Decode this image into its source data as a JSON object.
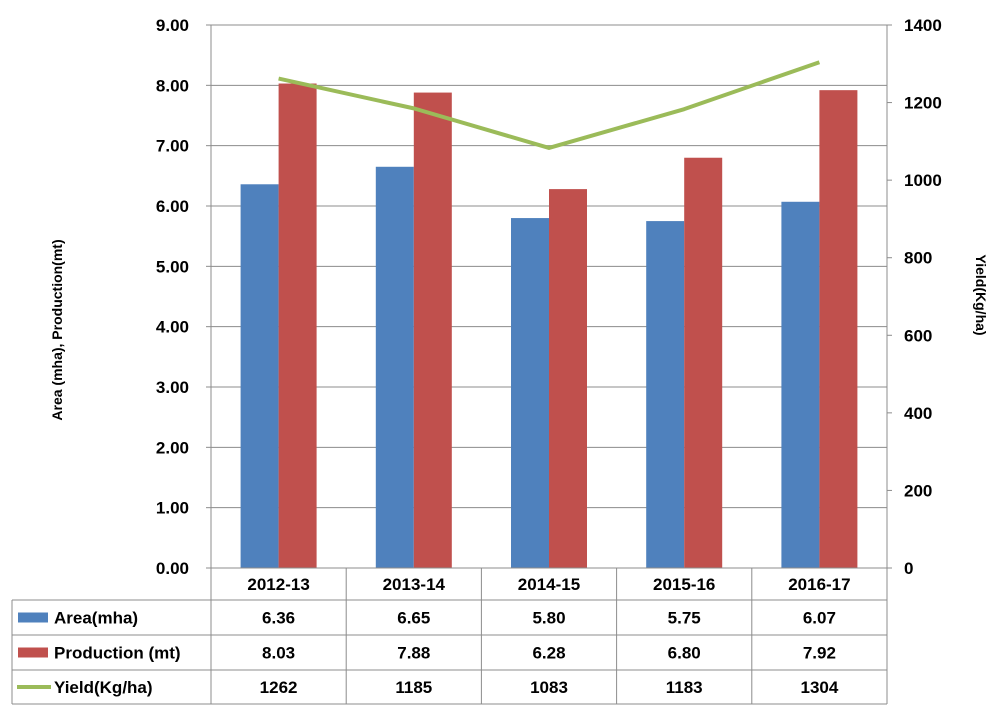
{
  "chart_data": {
    "type": "bar",
    "categories": [
      "2012-13",
      "2013-14",
      "2014-15",
      "2015-16",
      "2016-17"
    ],
    "series": [
      {
        "name": "Area(mha)",
        "kind": "bar",
        "axis": "left",
        "color": "#4F81BD",
        "values": [
          6.36,
          6.65,
          5.8,
          5.75,
          6.07
        ],
        "labels": [
          "6.36",
          "6.65",
          "5.80",
          "5.75",
          "6.07"
        ]
      },
      {
        "name": "Production (mt)",
        "kind": "bar",
        "axis": "left",
        "color": "#C0504D",
        "values": [
          8.03,
          7.88,
          6.28,
          6.8,
          7.92
        ],
        "labels": [
          "8.03",
          "7.88",
          "6.28",
          "6.80",
          "7.92"
        ]
      },
      {
        "name": "Yield(Kg/ha)",
        "kind": "line",
        "axis": "right",
        "color": "#9BBB59",
        "values": [
          1262,
          1185,
          1083,
          1183,
          1304
        ],
        "labels": [
          "1262",
          "1185",
          "1083",
          "1183",
          "1304"
        ]
      }
    ],
    "ylabel_left": "Area (mha), Production(mt)",
    "ylabel_right": "Yield(Kg/ha)",
    "ylim_left": [
      0,
      9
    ],
    "yticks_left": [
      "0.00",
      "1.00",
      "2.00",
      "3.00",
      "4.00",
      "5.00",
      "6.00",
      "7.00",
      "8.00",
      "9.00"
    ],
    "ylim_right": [
      0,
      1400
    ],
    "yticks_right": [
      "0",
      "200",
      "400",
      "600",
      "800",
      "1000",
      "1200",
      "1400"
    ],
    "grid": true,
    "data_table": true
  }
}
